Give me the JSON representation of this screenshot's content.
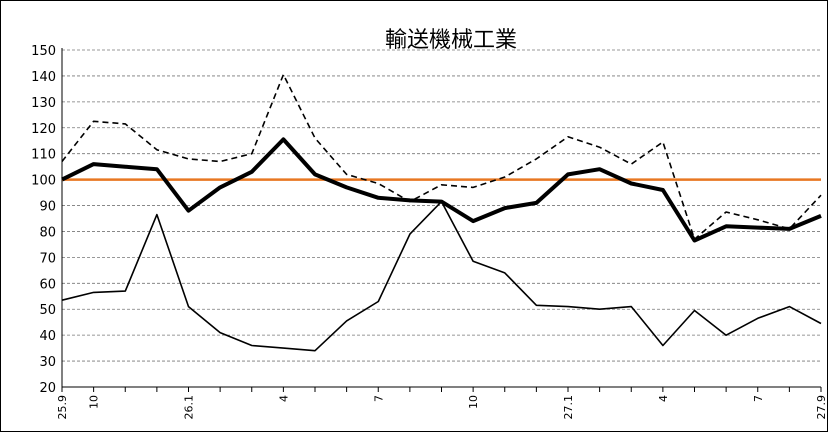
{
  "chart_data": {
    "type": "line",
    "title": "輸送機械工業",
    "xlabel": "",
    "ylabel": "",
    "ylim": [
      20,
      150
    ],
    "yticks": [
      20,
      30,
      40,
      50,
      60,
      70,
      80,
      90,
      100,
      110,
      120,
      130,
      140,
      150
    ],
    "grid": "horizontal-dashed",
    "legend": "none",
    "x": [
      "25.9",
      "25.10",
      "25.11",
      "25.12",
      "26.1",
      "26.2",
      "26.3",
      "26.4",
      "26.5",
      "26.6",
      "26.7",
      "26.8",
      "26.9",
      "26.10",
      "26.11",
      "26.12",
      "27.1",
      "27.2",
      "27.3",
      "27.4",
      "27.5",
      "27.6",
      "27.7",
      "27.8",
      "27.9"
    ],
    "xtick_labels": [
      "25.9",
      "10",
      "",
      "",
      "26.1",
      "",
      "",
      "4",
      "",
      "",
      "7",
      "",
      "",
      "10",
      "",
      "",
      "27.1",
      "",
      "",
      "4",
      "",
      "",
      "7",
      "",
      "27.9"
    ],
    "reference_line": {
      "value": 100,
      "color": "#e87722"
    },
    "series": [
      {
        "style": "dashed",
        "color": "#000000",
        "width": 1.6,
        "values": [
          107,
          122.5,
          121.5,
          111.5,
          108,
          107,
          110,
          140.5,
          116,
          102,
          98.5,
          91.5,
          98,
          97,
          101,
          108,
          116.5,
          112.5,
          106,
          114.5,
          77,
          87.5,
          84.5,
          81,
          94
        ]
      },
      {
        "style": "bold",
        "color": "#000000",
        "width": 4,
        "values": [
          100,
          106,
          105,
          104,
          88,
          97,
          103,
          115.5,
          102,
          97,
          93,
          92,
          91.5,
          84,
          89,
          91,
          102,
          104,
          98.5,
          96,
          76.5,
          82,
          81.5,
          81,
          86
        ]
      },
      {
        "style": "thin",
        "color": "#000000",
        "width": 1.6,
        "values": [
          53.5,
          56.5,
          57,
          86.5,
          51,
          41,
          36,
          35,
          34,
          45.5,
          53,
          79,
          91.5,
          68.5,
          64,
          51.5,
          51,
          50,
          51,
          36,
          49.5,
          40,
          46.5,
          51,
          44.5
        ]
      }
    ]
  }
}
